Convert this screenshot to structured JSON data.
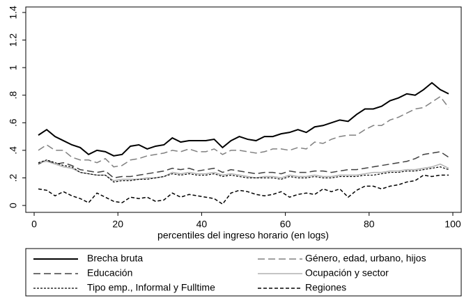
{
  "chart_data": {
    "type": "line",
    "xlabel": "percentiles del ingreso horario (en logs)",
    "x": [
      1,
      3,
      5,
      7,
      9,
      11,
      13,
      15,
      17,
      19,
      21,
      23,
      25,
      27,
      29,
      31,
      33,
      35,
      37,
      39,
      41,
      43,
      45,
      47,
      49,
      51,
      53,
      55,
      57,
      59,
      61,
      63,
      65,
      67,
      69,
      71,
      73,
      75,
      77,
      79,
      81,
      83,
      85,
      87,
      89,
      91,
      93,
      95,
      97,
      99
    ],
    "xlim": [
      -2,
      102
    ],
    "xticks": [
      0,
      20,
      40,
      60,
      80,
      100
    ],
    "ylim": [
      -0.05,
      1.44
    ],
    "yticks": [
      0,
      {
        "value": 0.2,
        "label": ".2"
      },
      {
        "value": 0.4,
        "label": ".4"
      },
      {
        "value": 0.6,
        "label": ".6"
      },
      {
        "value": 0.8,
        "label": ".8"
      },
      1,
      1.2,
      1.4
    ],
    "grid": false,
    "series": [
      {
        "name": "Brecha bruta",
        "color": "#000000",
        "width": 2,
        "dash": "none",
        "values": [
          0.51,
          0.55,
          0.5,
          0.47,
          0.44,
          0.42,
          0.37,
          0.4,
          0.39,
          0.36,
          0.37,
          0.43,
          0.44,
          0.41,
          0.43,
          0.44,
          0.49,
          0.46,
          0.47,
          0.47,
          0.47,
          0.48,
          0.42,
          0.47,
          0.5,
          0.48,
          0.47,
          0.5,
          0.5,
          0.52,
          0.53,
          0.55,
          0.53,
          0.57,
          0.58,
          0.6,
          0.62,
          0.61,
          0.66,
          0.7,
          0.7,
          0.72,
          0.76,
          0.78,
          0.81,
          0.8,
          0.84,
          0.89,
          0.84,
          0.81
        ]
      },
      {
        "name": "Género, edad, urbano, hijos",
        "color": "#808080",
        "width": 1.5,
        "dash": "10 5",
        "values": [
          0.4,
          0.44,
          0.4,
          0.4,
          0.35,
          0.33,
          0.33,
          0.31,
          0.34,
          0.28,
          0.29,
          0.33,
          0.34,
          0.36,
          0.37,
          0.38,
          0.4,
          0.39,
          0.41,
          0.39,
          0.39,
          0.41,
          0.37,
          0.4,
          0.4,
          0.39,
          0.38,
          0.39,
          0.41,
          0.41,
          0.4,
          0.42,
          0.41,
          0.46,
          0.45,
          0.48,
          0.5,
          0.51,
          0.51,
          0.55,
          0.58,
          0.58,
          0.62,
          0.64,
          0.67,
          0.7,
          0.71,
          0.75,
          0.79,
          0.71
        ]
      },
      {
        "name": "Educación",
        "color": "#404040",
        "width": 1.5,
        "dash": "10 5",
        "values": [
          0.3,
          0.33,
          0.3,
          0.31,
          0.29,
          0.26,
          0.25,
          0.24,
          0.25,
          0.2,
          0.21,
          0.21,
          0.22,
          0.23,
          0.24,
          0.25,
          0.27,
          0.26,
          0.27,
          0.25,
          0.26,
          0.27,
          0.24,
          0.26,
          0.25,
          0.24,
          0.23,
          0.24,
          0.24,
          0.23,
          0.25,
          0.24,
          0.24,
          0.25,
          0.25,
          0.24,
          0.25,
          0.26,
          0.26,
          0.27,
          0.28,
          0.29,
          0.3,
          0.31,
          0.32,
          0.34,
          0.37,
          0.38,
          0.39,
          0.35
        ]
      },
      {
        "name": "Ocupación y sector",
        "color": "#b0b0b0",
        "width": 1.5,
        "dash": "none",
        "values": [
          0.31,
          0.32,
          0.3,
          0.28,
          0.27,
          0.24,
          0.23,
          0.22,
          0.22,
          0.18,
          0.19,
          0.19,
          0.19,
          0.2,
          0.2,
          0.21,
          0.24,
          0.23,
          0.24,
          0.23,
          0.23,
          0.24,
          0.22,
          0.23,
          0.22,
          0.21,
          0.2,
          0.21,
          0.21,
          0.2,
          0.22,
          0.21,
          0.21,
          0.22,
          0.21,
          0.21,
          0.22,
          0.22,
          0.22,
          0.23,
          0.24,
          0.24,
          0.25,
          0.25,
          0.26,
          0.26,
          0.27,
          0.28,
          0.3,
          0.27
        ]
      },
      {
        "name": "Tipo emp., Informal y Fulltime",
        "color": "#000000",
        "width": 1.2,
        "dash": "3 2",
        "values": [
          0.31,
          0.33,
          0.31,
          0.29,
          0.28,
          0.24,
          0.23,
          0.22,
          0.22,
          0.17,
          0.18,
          0.18,
          0.19,
          0.19,
          0.2,
          0.21,
          0.23,
          0.22,
          0.23,
          0.22,
          0.22,
          0.23,
          0.21,
          0.22,
          0.21,
          0.2,
          0.2,
          0.2,
          0.2,
          0.19,
          0.21,
          0.2,
          0.2,
          0.21,
          0.2,
          0.2,
          0.21,
          0.21,
          0.21,
          0.22,
          0.22,
          0.23,
          0.24,
          0.24,
          0.25,
          0.25,
          0.26,
          0.27,
          0.28,
          0.26
        ]
      },
      {
        "name": "Regiones",
        "color": "#000000",
        "width": 1.5,
        "dash": "5 3",
        "values": [
          0.12,
          0.11,
          0.07,
          0.1,
          0.07,
          0.05,
          0.02,
          0.09,
          0.06,
          0.03,
          0.02,
          0.06,
          0.05,
          0.06,
          0.03,
          0.04,
          0.09,
          0.06,
          0.08,
          0.07,
          0.06,
          0.05,
          0.01,
          0.09,
          0.11,
          0.1,
          0.08,
          0.07,
          0.08,
          0.1,
          0.06,
          0.08,
          0.09,
          0.08,
          0.12,
          0.1,
          0.12,
          0.06,
          0.11,
          0.14,
          0.14,
          0.12,
          0.14,
          0.15,
          0.17,
          0.18,
          0.22,
          0.21,
          0.22,
          0.22
        ]
      }
    ]
  }
}
